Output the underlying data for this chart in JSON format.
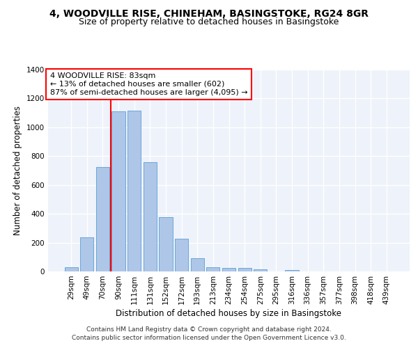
{
  "title_line1": "4, WOODVILLE RISE, CHINEHAM, BASINGSTOKE, RG24 8GR",
  "title_line2": "Size of property relative to detached houses in Basingstoke",
  "xlabel": "Distribution of detached houses by size in Basingstoke",
  "ylabel": "Number of detached properties",
  "footer_line1": "Contains HM Land Registry data © Crown copyright and database right 2024.",
  "footer_line2": "Contains public sector information licensed under the Open Government Licence v3.0.",
  "categories": [
    "29sqm",
    "49sqm",
    "70sqm",
    "90sqm",
    "111sqm",
    "131sqm",
    "152sqm",
    "172sqm",
    "193sqm",
    "213sqm",
    "234sqm",
    "254sqm",
    "275sqm",
    "295sqm",
    "316sqm",
    "336sqm",
    "357sqm",
    "377sqm",
    "398sqm",
    "418sqm",
    "439sqm"
  ],
  "values": [
    30,
    235,
    725,
    1110,
    1115,
    760,
    375,
    225,
    90,
    30,
    25,
    25,
    15,
    0,
    12,
    0,
    0,
    0,
    0,
    0,
    0
  ],
  "bar_color": "#aec6e8",
  "bar_edge_color": "#5a9fd4",
  "annotation_text": "4 WOODVILLE RISE: 83sqm\n← 13% of detached houses are smaller (602)\n87% of semi-detached houses are larger (4,095) →",
  "vline_color": "red",
  "ylim": [
    0,
    1400
  ],
  "yticks": [
    0,
    200,
    400,
    600,
    800,
    1000,
    1200,
    1400
  ],
  "background_color": "#eef2fa",
  "grid_color": "#ffffff",
  "title_fontsize": 10,
  "subtitle_fontsize": 9,
  "axis_label_fontsize": 8.5,
  "tick_fontsize": 7.5,
  "annotation_fontsize": 8,
  "footer_fontsize": 6.5
}
